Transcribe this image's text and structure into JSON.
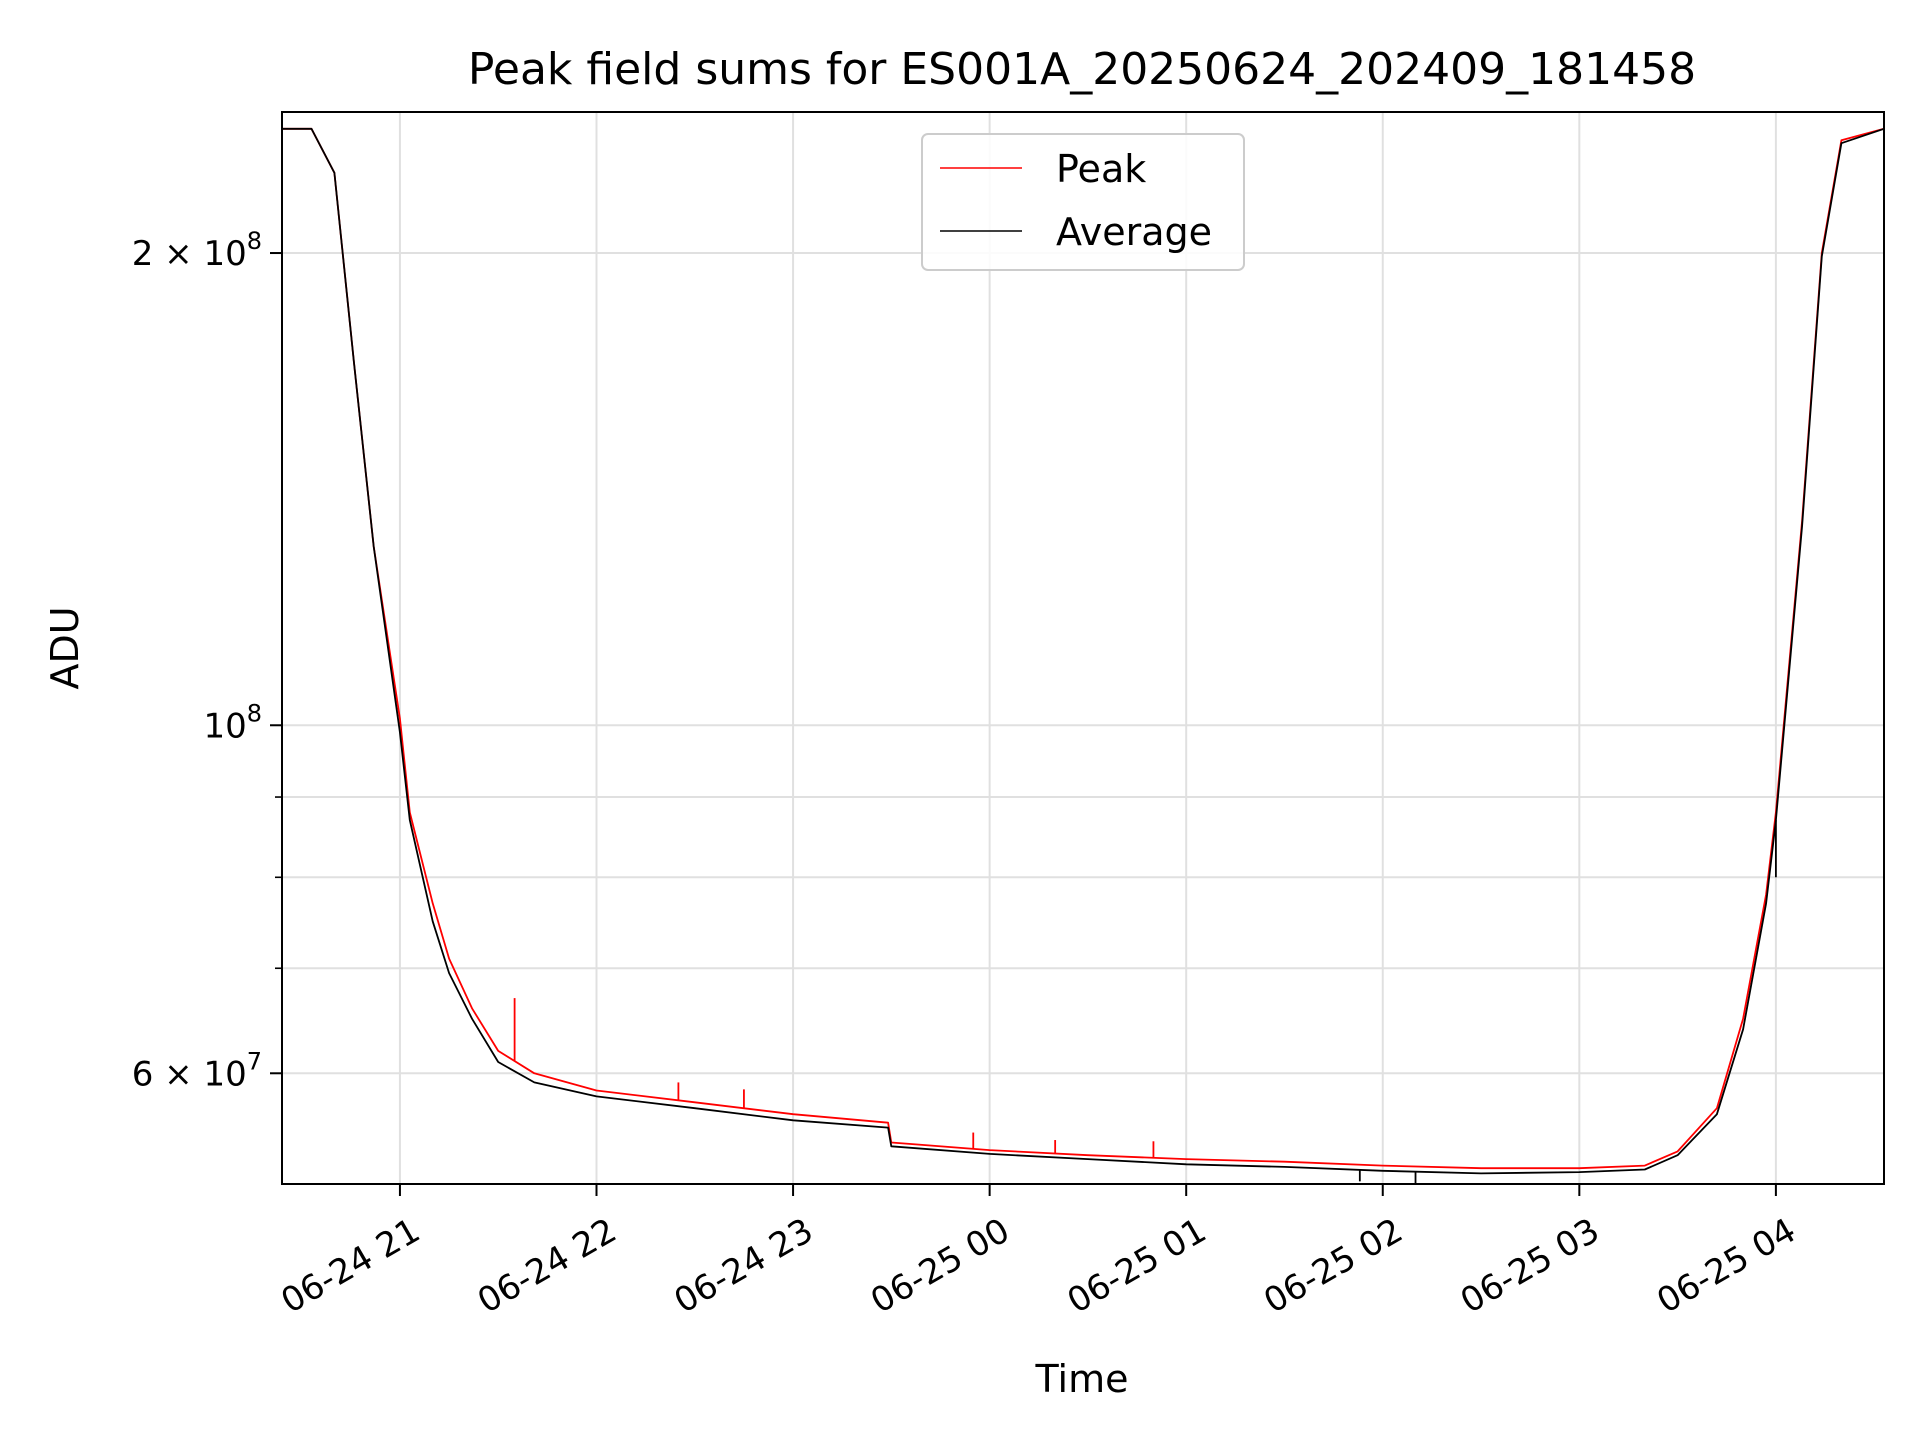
{
  "chart_data": {
    "type": "line",
    "title": "Peak field sums for ES001A_20250624_202409_181458",
    "xlabel": "Time",
    "ylabel": "ADU",
    "yscale": "log",
    "grid": true,
    "legend_position": "top-center",
    "xlim": [
      "2025-06-24 20:24",
      "2025-06-25 04:33"
    ],
    "ylim": [
      51000000,
      246000000
    ],
    "x_ticks": [
      {
        "value": "2025-06-24 21:00",
        "label": "06-24 21"
      },
      {
        "value": "2025-06-24 22:00",
        "label": "06-24 22"
      },
      {
        "value": "2025-06-24 23:00",
        "label": "06-24 23"
      },
      {
        "value": "2025-06-25 00:00",
        "label": "06-25 00"
      },
      {
        "value": "2025-06-25 01:00",
        "label": "06-25 01"
      },
      {
        "value": "2025-06-25 02:00",
        "label": "06-25 02"
      },
      {
        "value": "2025-06-25 03:00",
        "label": "06-25 03"
      },
      {
        "value": "2025-06-25 04:00",
        "label": "06-25 04"
      }
    ],
    "y_major_ticks": [
      {
        "value": 60000000,
        "mantissa": "6",
        "exponent": "7"
      },
      {
        "value": 100000000,
        "mantissa": "",
        "exponent": "8"
      },
      {
        "value": 200000000,
        "mantissa": "2",
        "exponent": "8"
      }
    ],
    "y_minor_ticks": [
      70000000,
      80000000,
      90000000
    ],
    "series": [
      {
        "name": "Peak",
        "color": "#ff0000",
        "x": [
          "2025-06-24 20:24",
          "2025-06-24 20:33",
          "2025-06-24 20:40",
          "2025-06-24 20:46",
          "2025-06-24 20:52",
          "2025-06-24 21:00",
          "2025-06-24 21:03",
          "2025-06-24 21:10",
          "2025-06-24 21:15",
          "2025-06-24 21:22",
          "2025-06-24 21:30",
          "2025-06-24 21:41",
          "2025-06-24 22:00",
          "2025-06-24 22:30",
          "2025-06-24 23:00",
          "2025-06-24 23:29",
          "2025-06-24 23:30",
          "2025-06-25 00:00",
          "2025-06-25 00:30",
          "2025-06-25 01:00",
          "2025-06-25 01:30",
          "2025-06-25 02:00",
          "2025-06-25 02:30",
          "2025-06-25 03:00",
          "2025-06-25 03:20",
          "2025-06-25 03:30",
          "2025-06-25 03:42",
          "2025-06-25 03:50",
          "2025-06-25 03:57",
          "2025-06-25 04:00",
          "2025-06-25 04:08",
          "2025-06-25 04:14",
          "2025-06-25 04:20",
          "2025-06-25 04:33"
        ],
        "y": [
          240000000,
          240000000,
          225000000,
          170000000,
          130000000,
          101000000,
          88000000,
          77000000,
          71000000,
          66000000,
          62000000,
          60000000,
          58500000,
          57500000,
          56500000,
          55800000,
          54200000,
          53600000,
          53200000,
          52900000,
          52700000,
          52400000,
          52200000,
          52200000,
          52400000,
          53500000,
          57000000,
          65000000,
          78000000,
          88000000,
          135000000,
          200000000,
          236000000,
          240000000
        ]
      },
      {
        "name": "Average",
        "color": "#000000",
        "x": [
          "2025-06-24 20:24",
          "2025-06-24 20:33",
          "2025-06-24 20:40",
          "2025-06-24 20:46",
          "2025-06-24 20:52",
          "2025-06-24 21:00",
          "2025-06-24 21:03",
          "2025-06-24 21:10",
          "2025-06-24 21:15",
          "2025-06-24 21:22",
          "2025-06-24 21:30",
          "2025-06-24 21:41",
          "2025-06-24 22:00",
          "2025-06-24 22:30",
          "2025-06-24 23:00",
          "2025-06-24 23:29",
          "2025-06-24 23:30",
          "2025-06-25 00:00",
          "2025-06-25 00:30",
          "2025-06-25 01:00",
          "2025-06-25 01:30",
          "2025-06-25 02:00",
          "2025-06-25 02:30",
          "2025-06-25 03:00",
          "2025-06-25 03:20",
          "2025-06-25 03:30",
          "2025-06-25 03:42",
          "2025-06-25 03:50",
          "2025-06-25 03:57",
          "2025-06-25 04:00",
          "2025-06-25 04:08",
          "2025-06-25 04:14",
          "2025-06-25 04:20",
          "2025-06-25 04:33"
        ],
        "y": [
          240000000,
          240000000,
          225000000,
          170000000,
          130000000,
          99000000,
          87000000,
          75000000,
          69500000,
          65000000,
          61000000,
          59200000,
          58000000,
          57000000,
          56000000,
          55400000,
          53900000,
          53300000,
          52900000,
          52500000,
          52300000,
          52000000,
          51800000,
          51900000,
          52100000,
          53200000,
          56500000,
          64000000,
          77000000,
          87000000,
          134000000,
          199000000,
          235000000,
          240000000
        ]
      }
    ],
    "annotations_spikes": [
      {
        "series": "Peak",
        "x": "2025-06-24 21:35",
        "y": 67000000
      },
      {
        "series": "Peak",
        "x": "2025-06-24 22:25",
        "y": 59200000
      },
      {
        "series": "Peak",
        "x": "2025-06-24 22:45",
        "y": 58600000
      },
      {
        "series": "Peak",
        "x": "2025-06-24 23:55",
        "y": 55000000
      },
      {
        "series": "Peak",
        "x": "2025-06-25 00:20",
        "y": 54400000
      },
      {
        "series": "Peak",
        "x": "2025-06-25 00:50",
        "y": 54300000
      },
      {
        "series": "Average",
        "x": "2025-06-25 01:53",
        "y": 51200000
      },
      {
        "series": "Average",
        "x": "2025-06-25 02:10",
        "y": 51000000
      },
      {
        "series": "Average",
        "x": "2025-06-25 04:00",
        "y": 80000000
      }
    ]
  }
}
